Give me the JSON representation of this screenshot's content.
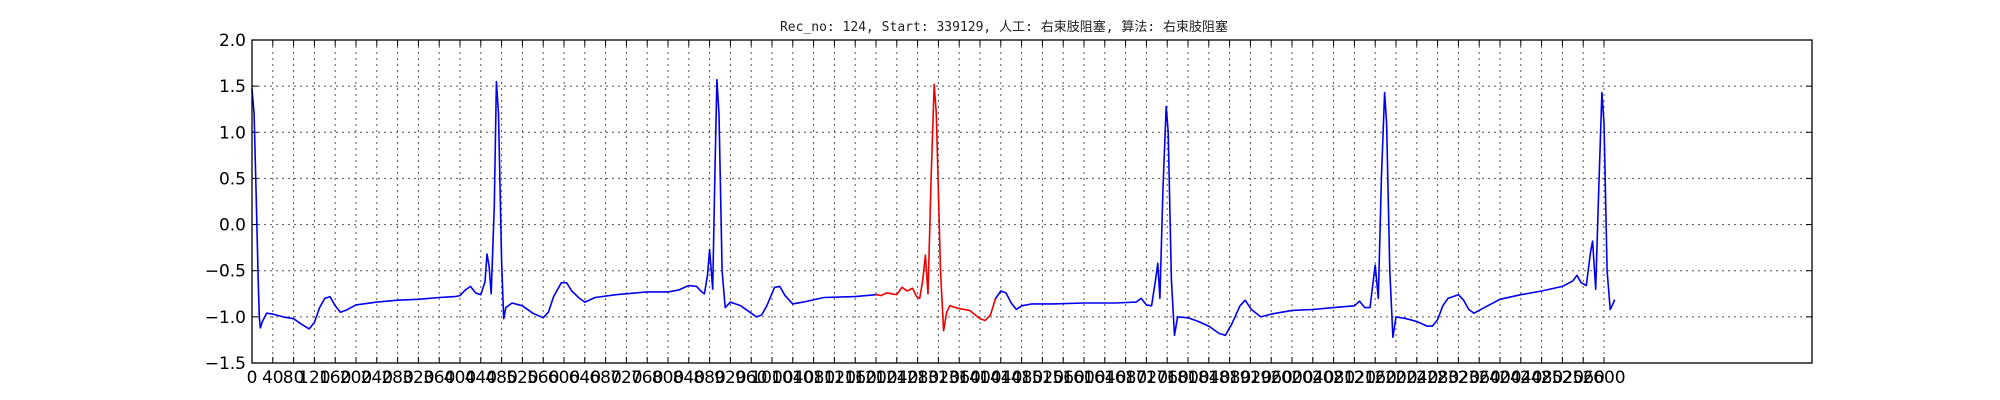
{
  "chart_data": {
    "type": "line",
    "title": "Rec_no: 124, Start: 339129, 人工: 右束肢阻塞, 算法: 右束肢阻塞",
    "xlabel": "",
    "ylabel": "",
    "xlim": [
      0,
      3000
    ],
    "ylim": [
      -1.5,
      2.0
    ],
    "yticks": [
      -1.5,
      -1.0,
      -0.5,
      0.0,
      0.5,
      1.0,
      1.5,
      2.0
    ],
    "ytick_labels": [
      "−1.5",
      "−1.0",
      "−0.5",
      "0.0",
      "0.5",
      "1.0",
      "1.5",
      "2.0"
    ],
    "xticks": [
      0,
      40,
      80,
      120,
      160,
      200,
      240,
      280,
      320,
      360,
      400,
      440,
      480,
      520,
      560,
      600,
      640,
      680,
      720,
      760,
      800,
      840,
      880,
      920,
      960,
      1000,
      1040,
      1080,
      1120,
      1160,
      1200,
      1240,
      1280,
      1320,
      1360,
      1400,
      1440,
      1480,
      1520,
      1560,
      1600,
      1640,
      1680,
      1720,
      1760,
      1800,
      1840,
      1880,
      1920,
      1960,
      2000,
      2040,
      2080,
      2120,
      2160,
      2200,
      2240,
      2280,
      2320,
      2360,
      2400,
      2440,
      2480,
      2520,
      2560,
      2600
    ],
    "grid": true,
    "colors": {
      "normal": "#0000ee",
      "highlight": "#ee0000",
      "grid": "#555555"
    },
    "series": [
      {
        "color": "#0000ee",
        "points": [
          [
            0,
            1.47
          ],
          [
            4,
            1.2
          ],
          [
            8,
            0.3
          ],
          [
            12,
            -0.6
          ],
          [
            14,
            -1.0
          ],
          [
            16,
            -1.12
          ],
          [
            20,
            -1.05
          ],
          [
            28,
            -0.96
          ],
          [
            40,
            -0.97
          ],
          [
            60,
            -1.0
          ],
          [
            80,
            -1.02
          ],
          [
            95,
            -1.08
          ],
          [
            110,
            -1.13
          ],
          [
            120,
            -1.06
          ],
          [
            130,
            -0.9
          ],
          [
            140,
            -0.8
          ],
          [
            150,
            -0.78
          ],
          [
            160,
            -0.88
          ],
          [
            170,
            -0.95
          ],
          [
            180,
            -0.93
          ],
          [
            200,
            -0.87
          ],
          [
            240,
            -0.84
          ],
          [
            280,
            -0.82
          ],
          [
            320,
            -0.81
          ],
          [
            360,
            -0.79
          ],
          [
            390,
            -0.78
          ],
          [
            400,
            -0.77
          ],
          [
            410,
            -0.71
          ],
          [
            420,
            -0.67
          ],
          [
            430,
            -0.74
          ],
          [
            440,
            -0.76
          ],
          [
            448,
            -0.62
          ],
          [
            452,
            -0.32
          ],
          [
            456,
            -0.45
          ],
          [
            460,
            -0.75
          ],
          [
            466,
            0.2
          ],
          [
            470,
            1.55
          ],
          [
            474,
            1.2
          ],
          [
            480,
            -0.4
          ],
          [
            484,
            -1.02
          ],
          [
            488,
            -0.9
          ],
          [
            500,
            -0.85
          ],
          [
            520,
            -0.88
          ],
          [
            540,
            -0.96
          ],
          [
            560,
            -1.01
          ],
          [
            570,
            -0.95
          ],
          [
            580,
            -0.78
          ],
          [
            595,
            -0.63
          ],
          [
            605,
            -0.63
          ],
          [
            615,
            -0.72
          ],
          [
            630,
            -0.8
          ],
          [
            640,
            -0.84
          ],
          [
            660,
            -0.79
          ],
          [
            700,
            -0.76
          ],
          [
            760,
            -0.73
          ],
          [
            800,
            -0.73
          ],
          [
            820,
            -0.71
          ],
          [
            840,
            -0.66
          ],
          [
            855,
            -0.67
          ],
          [
            865,
            -0.73
          ],
          [
            870,
            -0.75
          ],
          [
            876,
            -0.55
          ],
          [
            880,
            -0.27
          ],
          [
            886,
            -0.7
          ],
          [
            890,
            0.5
          ],
          [
            894,
            1.57
          ],
          [
            898,
            1.2
          ],
          [
            904,
            -0.5
          ],
          [
            910,
            -0.9
          ],
          [
            920,
            -0.84
          ],
          [
            940,
            -0.88
          ],
          [
            960,
            -0.96
          ],
          [
            970,
            -1.0
          ],
          [
            980,
            -0.98
          ],
          [
            990,
            -0.88
          ],
          [
            1005,
            -0.68
          ],
          [
            1015,
            -0.67
          ],
          [
            1025,
            -0.77
          ],
          [
            1040,
            -0.86
          ],
          [
            1060,
            -0.84
          ],
          [
            1100,
            -0.79
          ],
          [
            1160,
            -0.78
          ],
          [
            1200,
            -0.76
          ]
        ]
      },
      {
        "color": "#ee0000",
        "points": [
          [
            1200,
            -0.76
          ],
          [
            1210,
            -0.77
          ],
          [
            1220,
            -0.74
          ],
          [
            1240,
            -0.76
          ],
          [
            1250,
            -0.68
          ],
          [
            1260,
            -0.72
          ],
          [
            1270,
            -0.69
          ],
          [
            1278,
            -0.78
          ],
          [
            1284,
            -0.8
          ],
          [
            1290,
            -0.6
          ],
          [
            1295,
            -0.33
          ],
          [
            1300,
            -0.75
          ],
          [
            1306,
            0.5
          ],
          [
            1312,
            1.52
          ],
          [
            1316,
            1.2
          ],
          [
            1324,
            -0.5
          ],
          [
            1330,
            -1.15
          ],
          [
            1336,
            -0.95
          ],
          [
            1342,
            -0.88
          ],
          [
            1360,
            -0.91
          ],
          [
            1380,
            -0.93
          ],
          [
            1400,
            -1.02
          ],
          [
            1410,
            -1.04
          ],
          [
            1420,
            -0.98
          ],
          [
            1430,
            -0.8
          ]
        ]
      },
      {
        "color": "#0000ee",
        "points": [
          [
            1430,
            -0.8
          ],
          [
            1440,
            -0.72
          ],
          [
            1450,
            -0.74
          ],
          [
            1460,
            -0.85
          ],
          [
            1470,
            -0.92
          ],
          [
            1480,
            -0.88
          ],
          [
            1500,
            -0.86
          ],
          [
            1540,
            -0.86
          ],
          [
            1600,
            -0.85
          ],
          [
            1660,
            -0.85
          ],
          [
            1700,
            -0.84
          ],
          [
            1710,
            -0.8
          ],
          [
            1720,
            -0.87
          ],
          [
            1730,
            -0.88
          ],
          [
            1738,
            -0.58
          ],
          [
            1742,
            -0.42
          ],
          [
            1746,
            -0.8
          ],
          [
            1752,
            0.4
          ],
          [
            1758,
            1.28
          ],
          [
            1762,
            1.0
          ],
          [
            1768,
            -0.6
          ],
          [
            1774,
            -1.2
          ],
          [
            1780,
            -1.0
          ],
          [
            1800,
            -1.01
          ],
          [
            1820,
            -1.05
          ],
          [
            1840,
            -1.1
          ],
          [
            1860,
            -1.18
          ],
          [
            1872,
            -1.2
          ],
          [
            1884,
            -1.08
          ],
          [
            1900,
            -0.88
          ],
          [
            1910,
            -0.82
          ],
          [
            1922,
            -0.92
          ],
          [
            1940,
            -1.0
          ],
          [
            1960,
            -0.97
          ],
          [
            2000,
            -0.93
          ],
          [
            2040,
            -0.92
          ],
          [
            2080,
            -0.9
          ],
          [
            2120,
            -0.88
          ],
          [
            2130,
            -0.83
          ],
          [
            2140,
            -0.9
          ],
          [
            2150,
            -0.9
          ],
          [
            2156,
            -0.62
          ],
          [
            2160,
            -0.44
          ],
          [
            2166,
            -0.8
          ],
          [
            2172,
            0.5
          ],
          [
            2178,
            1.43
          ],
          [
            2182,
            1.1
          ],
          [
            2188,
            -0.5
          ],
          [
            2194,
            -1.22
          ],
          [
            2200,
            -1.0
          ],
          [
            2220,
            -1.02
          ],
          [
            2240,
            -1.05
          ],
          [
            2260,
            -1.1
          ],
          [
            2270,
            -1.1
          ],
          [
            2280,
            -1.03
          ],
          [
            2290,
            -0.88
          ],
          [
            2300,
            -0.8
          ],
          [
            2320,
            -0.76
          ],
          [
            2330,
            -0.82
          ],
          [
            2340,
            -0.92
          ],
          [
            2350,
            -0.96
          ],
          [
            2370,
            -0.9
          ],
          [
            2400,
            -0.81
          ],
          [
            2440,
            -0.76
          ],
          [
            2480,
            -0.72
          ],
          [
            2520,
            -0.67
          ],
          [
            2540,
            -0.61
          ],
          [
            2548,
            -0.55
          ],
          [
            2556,
            -0.63
          ],
          [
            2566,
            -0.66
          ],
          [
            2574,
            -0.3
          ],
          [
            2578,
            -0.18
          ],
          [
            2584,
            -0.7
          ],
          [
            2590,
            0.4
          ],
          [
            2596,
            1.43
          ],
          [
            2600,
            1.1
          ],
          [
            2606,
            -0.5
          ],
          [
            2612,
            -0.92
          ],
          [
            2618,
            -0.85
          ],
          [
            2620,
            -0.82
          ]
        ]
      }
    ]
  }
}
